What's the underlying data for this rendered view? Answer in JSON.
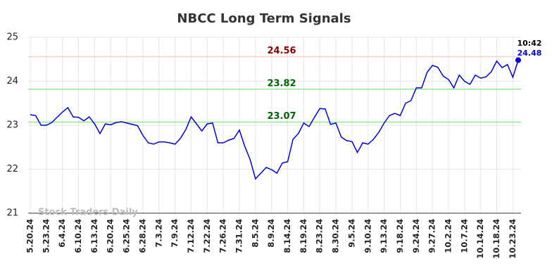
{
  "chart_data": {
    "type": "line",
    "title": "NBCC Long Term Signals",
    "watermark": "Stock Traders Daily",
    "time_label": "10:42",
    "categories": [
      "5.20.24",
      null,
      null,
      "5.23.24",
      null,
      null,
      "6.4.24",
      null,
      null,
      "6.10.24",
      null,
      null,
      "6.13.24",
      null,
      null,
      "6.20.24",
      null,
      null,
      "6.25.24",
      null,
      null,
      "6.28.24",
      null,
      null,
      "7.3.24",
      null,
      null,
      "7.9.24",
      null,
      null,
      "7.12.24",
      null,
      null,
      "7.22.24",
      null,
      null,
      "7.26.24",
      null,
      null,
      "7.31.24",
      null,
      null,
      "8.5.24",
      null,
      null,
      "8.9.24",
      null,
      null,
      "8.14.24",
      null,
      null,
      "8.19.24",
      null,
      null,
      "8.23.24",
      null,
      null,
      "8.30.24",
      null,
      null,
      "9.5.24",
      null,
      null,
      "9.10.24",
      null,
      null,
      "9.13.24",
      null,
      null,
      "9.18.24",
      null,
      null,
      "9.24.24",
      null,
      null,
      "9.27.24",
      null,
      null,
      "10.2.24",
      null,
      null,
      "10.7.24",
      null,
      null,
      "10.14.24",
      null,
      null,
      "10.18.24",
      null,
      null,
      "10.23.24",
      null
    ],
    "values": [
      23.24,
      23.22,
      23.0,
      23.0,
      23.06,
      23.18,
      23.3,
      23.4,
      23.19,
      23.18,
      23.1,
      23.19,
      23.03,
      22.81,
      23.03,
      23.01,
      23.06,
      23.08,
      23.05,
      23.02,
      22.99,
      22.77,
      22.6,
      22.57,
      22.62,
      22.62,
      22.6,
      22.57,
      22.7,
      22.9,
      23.19,
      23.03,
      22.87,
      23.03,
      23.05,
      22.6,
      22.6,
      22.66,
      22.7,
      22.89,
      22.52,
      22.22,
      21.78,
      21.91,
      22.04,
      21.99,
      21.91,
      22.14,
      22.17,
      22.68,
      22.81,
      23.05,
      22.97,
      23.18,
      23.38,
      23.37,
      23.02,
      23.05,
      22.73,
      22.65,
      22.63,
      22.38,
      22.6,
      22.57,
      22.68,
      22.84,
      23.05,
      23.22,
      23.27,
      23.22,
      23.5,
      23.56,
      23.85,
      23.85,
      24.2,
      24.36,
      24.32,
      24.12,
      24.04,
      23.85,
      24.14,
      24.0,
      23.93,
      24.14,
      24.07,
      24.1,
      24.22,
      24.46,
      24.31,
      24.38,
      24.09,
      24.48
    ],
    "color": "#0000dd",
    "hlines": [
      {
        "value": 24.56,
        "color": "#ffcccc",
        "label_color": "#8b0000"
      },
      {
        "value": 23.82,
        "color": "#90ee90",
        "label_color": "#006400"
      },
      {
        "value": 23.07,
        "color": "#90ee90",
        "label_color": "#006400"
      }
    ],
    "ylim": [
      21,
      25
    ],
    "yticks": [
      21,
      22,
      23,
      24,
      25
    ],
    "grid": true
  }
}
